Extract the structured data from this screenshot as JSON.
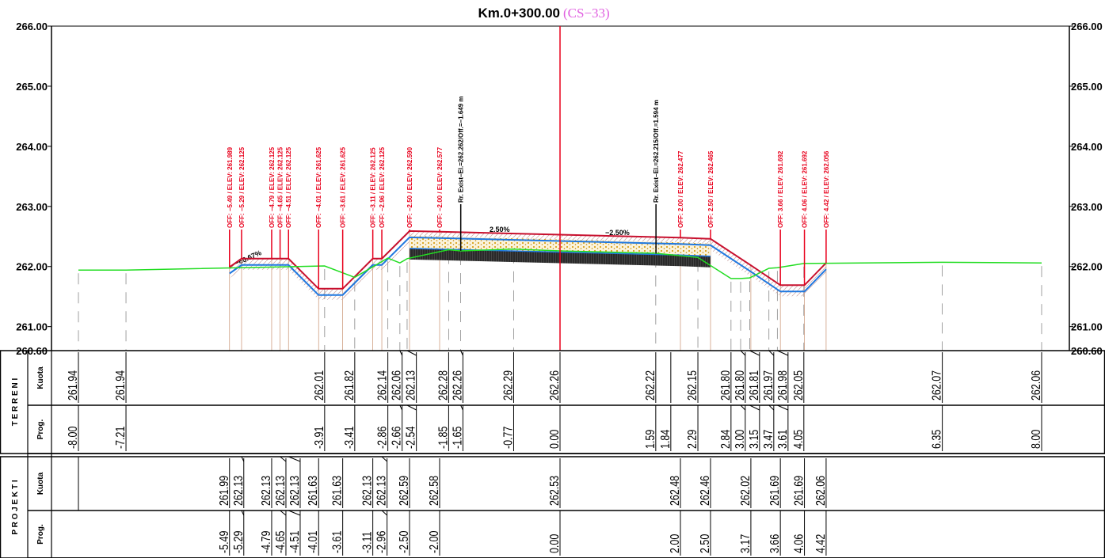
{
  "title": "Km.0+300.00",
  "subtitle": "(CS−33)",
  "elevation_labels": [
    {
      "value": 266,
      "label": "266.00"
    },
    {
      "value": 265,
      "label": "265.00"
    },
    {
      "value": 264,
      "label": "264.00"
    },
    {
      "value": 263,
      "label": "263.00"
    },
    {
      "value": 262,
      "label": "262.00"
    },
    {
      "value": 261,
      "label": "261.00"
    },
    {
      "value": 260.6,
      "label": "260.60"
    }
  ],
  "slope_labels": [
    "2.50%",
    "−2.50%",
    "−66.67%"
  ],
  "annotations": [
    {
      "text": "OFF: −5.49 / ELEV: 261.989",
      "offset": -5.49,
      "elevation": 261.989,
      "color": "#e8001c"
    },
    {
      "text": "OFF: −5.29 / ELEV: 262.125",
      "offset": -5.29,
      "elevation": 262.125,
      "color": "#e8001c"
    },
    {
      "text": "OFF: −4.79 / ELEV: 262.125",
      "offset": -4.79,
      "elevation": 262.125,
      "color": "#e8001c"
    },
    {
      "text": "OFF: −4.65 / ELEV: 262.125",
      "offset": -4.65,
      "elevation": 262.125,
      "color": "#e8001c"
    },
    {
      "text": "OFF: −4.51 / ELEV: 262.125",
      "offset": -4.51,
      "elevation": 262.125,
      "color": "#e8001c"
    },
    {
      "text": "OFF: −4.01 / ELEV: 261.625",
      "offset": -4.01,
      "elevation": 261.625,
      "color": "#e8001c"
    },
    {
      "text": "OFF: −3.61 / ELEV: 261.625",
      "offset": -3.61,
      "elevation": 261.625,
      "color": "#e8001c"
    },
    {
      "text": "OFF: −3.11 / ELEV: 262.125",
      "offset": -3.11,
      "elevation": 262.125,
      "color": "#e8001c"
    },
    {
      "text": "OFF: −2.96 / ELEV: 262.125",
      "offset": -2.96,
      "elevation": 262.125,
      "color": "#e8001c"
    },
    {
      "text": "OFF: −2.50 / ELEV: 262.590",
      "offset": -2.5,
      "elevation": 262.59,
      "color": "#e8001c"
    },
    {
      "text": "OFF: −2.00 / ELEV: 262.577",
      "offset": -2.0,
      "elevation": 262.577,
      "color": "#e8001c"
    },
    {
      "text": "Rr. Exist–El.=262.262/Off.=−1.649 m",
      "offset": -1.649,
      "elevation": 262.262,
      "color": "#000000"
    },
    {
      "text": "Rr. Exist–El.=262.215/Off.=1.594 m",
      "offset": 1.594,
      "elevation": 262.215,
      "color": "#000000"
    },
    {
      "text": "OFF: 2.00 / ELEV: 262.477",
      "offset": 2.0,
      "elevation": 262.477,
      "color": "#e8001c"
    },
    {
      "text": "OFF: 2.50 / ELEV: 262.465",
      "offset": 2.5,
      "elevation": 262.465,
      "color": "#e8001c"
    },
    {
      "text": "OFF: 3.66 / ELEV: 261.692",
      "offset": 3.66,
      "elevation": 261.692,
      "color": "#e8001c"
    },
    {
      "text": "OFF: 4.06 / ELEV: 261.692",
      "offset": 4.06,
      "elevation": 261.692,
      "color": "#e8001c"
    },
    {
      "text": "OFF: 4.42 / ELEV: 262.056",
      "offset": 4.42,
      "elevation": 262.056,
      "color": "#e8001c"
    }
  ],
  "table": {
    "row_labels": [
      "Kuota",
      "Prog."
    ],
    "terreni": {
      "name": "T E R R E N I",
      "points": [
        {
          "prog": "-8.00",
          "kuota": "261.94"
        },
        {
          "prog": "-7.21",
          "kuota": "261.94"
        },
        {
          "prog": "-3.91",
          "kuota": "262.01"
        },
        {
          "prog": "-3.41",
          "kuota": "261.82"
        },
        {
          "prog": "-2.86",
          "kuota": "262.14"
        },
        {
          "prog": "-2.66",
          "kuota": "262.06"
        },
        {
          "prog": "-2.54",
          "kuota": "262.13"
        },
        {
          "prog": "-1.85",
          "kuota": "262.28"
        },
        {
          "prog": "-1.65",
          "kuota": "262.26"
        },
        {
          "prog": "-0.77",
          "kuota": "262.29"
        },
        {
          "prog": "0.00",
          "kuota": "262.26"
        },
        {
          "prog": "1.59",
          "kuota": "262.22"
        },
        {
          "prog": "1.84",
          "kuota": null
        },
        {
          "prog": "2.29",
          "kuota": "262.15"
        },
        {
          "prog": "2.84",
          "kuota": "261.80"
        },
        {
          "prog": "3.00",
          "kuota": "261.80"
        },
        {
          "prog": "3.15",
          "kuota": "261.81"
        },
        {
          "prog": "3.47",
          "kuota": "261.97"
        },
        {
          "prog": "3.61",
          "kuota": "261.98"
        },
        {
          "prog": "4.05",
          "kuota": "262.05"
        },
        {
          "prog": "6.35",
          "kuota": "262.07"
        },
        {
          "prog": "8.00",
          "kuota": "262.06"
        }
      ]
    },
    "projekti": {
      "name": "P R O J E K T I",
      "points": [
        {
          "prog": "-5.49",
          "kuota": "261.99"
        },
        {
          "prog": "-5.29",
          "kuota": "262.13"
        },
        {
          "prog": "-4.79",
          "kuota": "262.13"
        },
        {
          "prog": "-4.65",
          "kuota": "262.13"
        },
        {
          "prog": "-4.51",
          "kuota": "262.13"
        },
        {
          "prog": "-4.01",
          "kuota": "261.63"
        },
        {
          "prog": "-3.61",
          "kuota": "261.63"
        },
        {
          "prog": "-3.11",
          "kuota": "262.13"
        },
        {
          "prog": "-2.96",
          "kuota": "262.13"
        },
        {
          "prog": "-2.50",
          "kuota": "262.59"
        },
        {
          "prog": "-2.00",
          "kuota": "262.58"
        },
        {
          "prog": "0.00",
          "kuota": "262.53"
        },
        {
          "prog": "2.00",
          "kuota": "262.48"
        },
        {
          "prog": "2.50",
          "kuota": "262.46"
        },
        {
          "prog": "3.17",
          "kuota": "262.02"
        },
        {
          "prog": "3.66",
          "kuota": "261.69"
        },
        {
          "prog": "4.06",
          "kuota": "261.69"
        },
        {
          "prog": "4.42",
          "kuota": "262.06"
        }
      ]
    }
  }
}
